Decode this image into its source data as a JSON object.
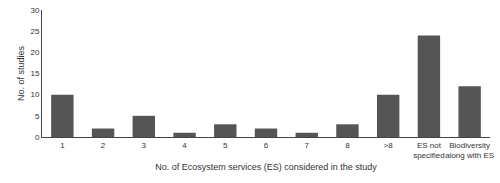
{
  "chart_data": {
    "type": "bar",
    "categories": [
      "1",
      "2",
      "3",
      "4",
      "5",
      "6",
      "7",
      "8",
      ">8",
      "ES not\nspecified",
      "Biodiversity\nalong with ES"
    ],
    "values": [
      10,
      2,
      5,
      1,
      3,
      2,
      1,
      3,
      10,
      24,
      12
    ],
    "color": "#555555",
    "xlabel": "No. of Ecosystem services (ES) considered in the study",
    "ylabel": "No. of studies",
    "ylim": [
      0,
      30
    ],
    "yticks": [
      0,
      5,
      10,
      15,
      20,
      25,
      30
    ],
    "grid": false
  }
}
